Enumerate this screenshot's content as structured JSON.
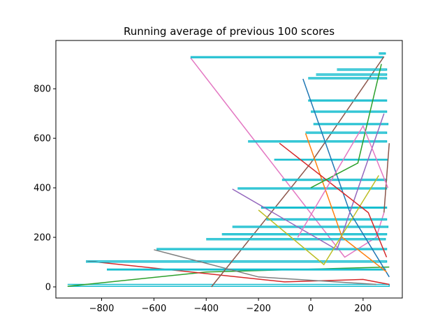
{
  "chart_data": {
    "type": "line",
    "title": "Running average of previous 100 scores",
    "xlabel": "",
    "ylabel": "",
    "xlim": [
      -975,
      350
    ],
    "ylim": [
      -45,
      995
    ],
    "xticks": [
      -800,
      -600,
      -400,
      -200,
      0,
      200
    ],
    "yticks": [
      0,
      200,
      400,
      600,
      800
    ],
    "xtick_labels": [
      "−800",
      "−600",
      "−400",
      "−200",
      "0",
      "200"
    ],
    "ytick_labels": [
      "0",
      "200",
      "400",
      "600",
      "800"
    ],
    "grid": false,
    "legend": "none",
    "colors": [
      "#1f77b4",
      "#ff7f0e",
      "#2ca02c",
      "#d62728",
      "#9467bd",
      "#8c564b",
      "#e377c2",
      "#7f7f7f",
      "#bcbd22",
      "#17becf"
    ],
    "series": [
      {
        "color": "#17becf",
        "x": [
          -930,
          300,
          300,
          -930
        ],
        "y": [
          2,
          2,
          10,
          10
        ]
      },
      {
        "color": "#2ca02c",
        "x": [
          -930,
          -400,
          300
        ],
        "y": [
          2,
          60,
          80
        ]
      },
      {
        "color": "#d62728",
        "x": [
          -860,
          -100,
          200,
          300
        ],
        "y": [
          105,
          20,
          30,
          10
        ]
      },
      {
        "color": "#17becf",
        "x": [
          -860,
          290,
          290,
          -860
        ],
        "y": [
          105,
          105,
          100,
          100
        ]
      },
      {
        "color": "#17becf",
        "x": [
          -780,
          285,
          285,
          -780
        ],
        "y": [
          68,
          68,
          72,
          72
        ]
      },
      {
        "color": "#e377c2",
        "x": [
          -460,
          130,
          250,
          280
        ],
        "y": [
          925,
          120,
          200,
          300
        ]
      },
      {
        "color": "#17becf",
        "x": [
          -460,
          275,
          275,
          -460
        ],
        "y": [
          925,
          925,
          930,
          930
        ]
      },
      {
        "color": "#8c564b",
        "x": [
          -380,
          0,
          280
        ],
        "y": [
          0,
          500,
          930
        ]
      },
      {
        "color": "#17becf",
        "x": [
          -590,
          290,
          290,
          -590
        ],
        "y": [
          155,
          155,
          150,
          150
        ]
      },
      {
        "color": "#17becf",
        "x": [
          -400,
          285,
          285,
          -400
        ],
        "y": [
          195,
          195,
          190,
          190
        ]
      },
      {
        "color": "#17becf",
        "x": [
          -340,
          290,
          290,
          -340
        ],
        "y": [
          215,
          215,
          210,
          210
        ]
      },
      {
        "color": "#17becf",
        "x": [
          -300,
          295,
          295,
          -300
        ],
        "y": [
          240,
          240,
          245,
          245
        ]
      },
      {
        "color": "#17becf",
        "x": [
          -280,
          290,
          290,
          -280
        ],
        "y": [
          395,
          395,
          400,
          400
        ]
      },
      {
        "color": "#17becf",
        "x": [
          -240,
          290,
          290,
          -240
        ],
        "y": [
          585,
          585,
          590,
          590
        ]
      },
      {
        "color": "#17becf",
        "x": [
          -190,
          290,
          290,
          -190
        ],
        "y": [
          318,
          318,
          322,
          322
        ]
      },
      {
        "color": "#17becf",
        "x": [
          -170,
          290,
          290,
          -170
        ],
        "y": [
          270,
          270,
          275,
          275
        ]
      },
      {
        "color": "#17becf",
        "x": [
          -140,
          295,
          295,
          -140
        ],
        "y": [
          512,
          512,
          515,
          515
        ]
      },
      {
        "color": "#17becf",
        "x": [
          -110,
          290,
          290,
          -110
        ],
        "y": [
          430,
          430,
          435,
          435
        ]
      },
      {
        "color": "#17becf",
        "x": [
          -20,
          290,
          290,
          -20
        ],
        "y": [
          620,
          620,
          625,
          625
        ]
      },
      {
        "color": "#17becf",
        "x": [
          -10,
          290,
          290,
          -10
        ],
        "y": [
          750,
          750,
          755,
          755
        ]
      },
      {
        "color": "#17becf",
        "x": [
          -10,
          290,
          290,
          -10
        ],
        "y": [
          840,
          840,
          845,
          845
        ]
      },
      {
        "color": "#17becf",
        "x": [
          0,
          290,
          290,
          0
        ],
        "y": [
          705,
          705,
          710,
          710
        ]
      },
      {
        "color": "#17becf",
        "x": [
          10,
          295,
          295,
          10
        ],
        "y": [
          655,
          655,
          660,
          660
        ]
      },
      {
        "color": "#17becf",
        "x": [
          20,
          290,
          290,
          20
        ],
        "y": [
          855,
          855,
          860,
          860
        ]
      },
      {
        "color": "#17becf",
        "x": [
          100,
          290,
          290,
          100
        ],
        "y": [
          875,
          875,
          880,
          880
        ]
      },
      {
        "color": "#1f77b4",
        "x": [
          -30,
          150,
          300
        ],
        "y": [
          840,
          300,
          40
        ]
      },
      {
        "color": "#ff7f0e",
        "x": [
          -20,
          120,
          290
        ],
        "y": [
          620,
          200,
          60
        ]
      },
      {
        "color": "#9467bd",
        "x": [
          -300,
          100,
          280
        ],
        "y": [
          395,
          150,
          700
        ]
      },
      {
        "color": "#bcbd22",
        "x": [
          -200,
          50,
          260
        ],
        "y": [
          310,
          90,
          450
        ]
      },
      {
        "color": "#7f7f7f",
        "x": [
          -600,
          -200,
          250
        ],
        "y": [
          150,
          40,
          10
        ]
      },
      {
        "color": "#8c564b",
        "x": [
          280,
          300
        ],
        "y": [
          300,
          580
        ]
      },
      {
        "color": "#d62728",
        "x": [
          -120,
          220,
          290
        ],
        "y": [
          580,
          300,
          120
        ]
      },
      {
        "color": "#2ca02c",
        "x": [
          0,
          180,
          270
        ],
        "y": [
          400,
          500,
          900
        ]
      },
      {
        "color": "#e377c2",
        "x": [
          -50,
          200,
          295
        ],
        "y": [
          200,
          650,
          400
        ]
      },
      {
        "color": "#17becf",
        "x": [
          260,
          285,
          285,
          260
        ],
        "y": [
          940,
          940,
          945,
          945
        ]
      }
    ]
  }
}
